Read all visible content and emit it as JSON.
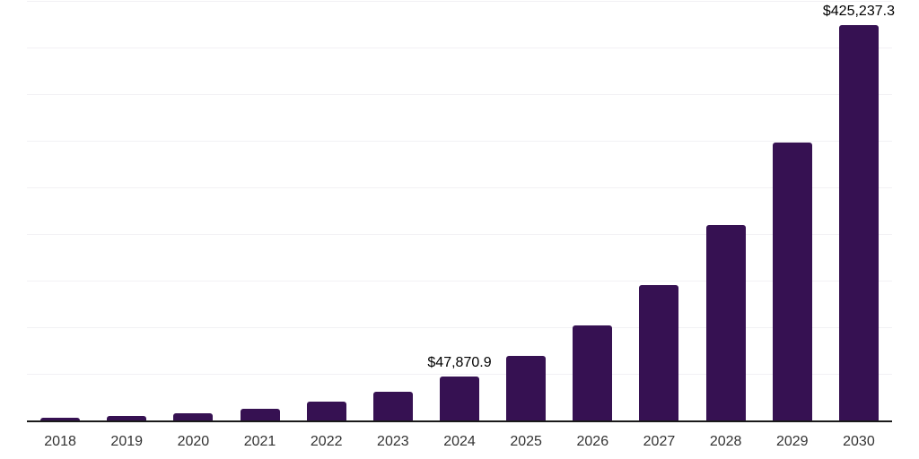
{
  "chart_data": {
    "type": "bar",
    "title": "",
    "xlabel": "",
    "ylabel": "",
    "categories": [
      "2018",
      "2019",
      "2020",
      "2021",
      "2022",
      "2023",
      "2024",
      "2025",
      "2026",
      "2027",
      "2028",
      "2029",
      "2030"
    ],
    "values": [
      3850,
      6050,
      8950,
      13750,
      20850,
      32000,
      47870.9,
      70200,
      102900,
      146400,
      210600,
      299000,
      425237.3
    ],
    "labeled_points": [
      {
        "category": "2024",
        "label": "$47,870.9"
      },
      {
        "category": "2030",
        "label": "$425,237.3"
      }
    ],
    "ylim": [
      0,
      450000
    ],
    "grid": "horizontal",
    "gridline_interval": 50000,
    "legend": "none",
    "colors": {
      "bar": "#361152",
      "axis_line": "#1a1a1a",
      "gridline": "#f2f1f4",
      "tick_label": "#333333",
      "value_label": "#000000",
      "background": "#ffffff"
    }
  }
}
